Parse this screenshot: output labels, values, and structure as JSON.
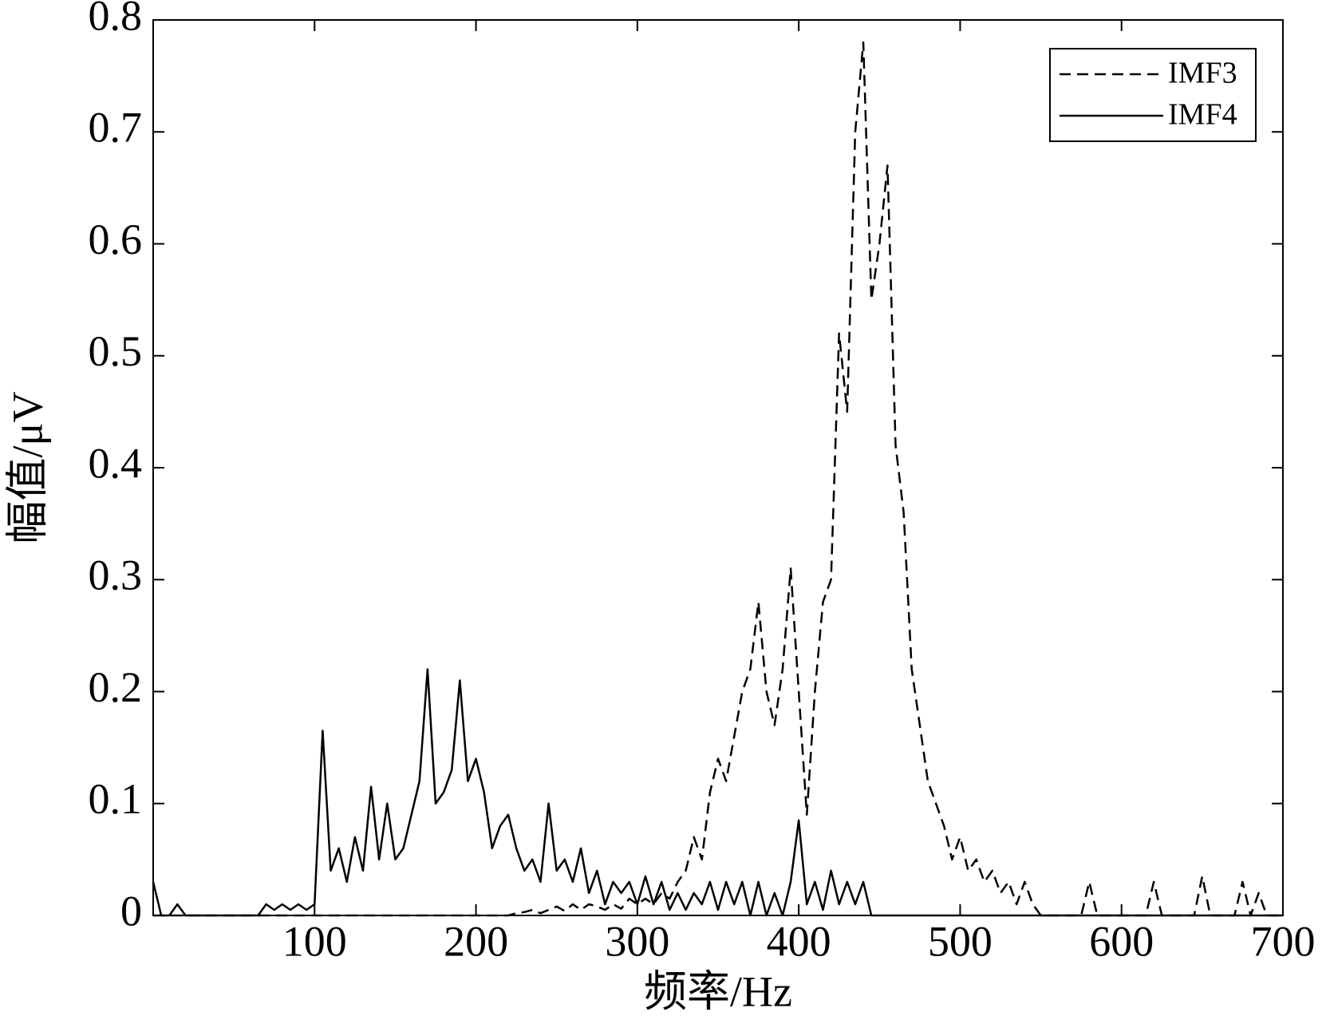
{
  "chart_data": {
    "type": "line",
    "x_label": "频率/Hz",
    "y_label": "幅值/μV",
    "xlim": [
      0,
      700
    ],
    "xticks": [
      100,
      200,
      300,
      400,
      500,
      600,
      700
    ],
    "ylim": [
      0,
      0.8
    ],
    "yticks": [
      0,
      0.1,
      0.2,
      0.3,
      0.4,
      0.5,
      0.6,
      0.7,
      0.8
    ],
    "grid": false,
    "legend_position": "upper right",
    "x": [
      0,
      5,
      10,
      15,
      20,
      25,
      30,
      35,
      40,
      45,
      50,
      55,
      60,
      65,
      70,
      75,
      80,
      85,
      90,
      95,
      100,
      105,
      110,
      115,
      120,
      125,
      130,
      135,
      140,
      145,
      150,
      155,
      160,
      165,
      170,
      175,
      180,
      185,
      190,
      195,
      200,
      205,
      210,
      215,
      220,
      225,
      230,
      235,
      240,
      245,
      250,
      255,
      260,
      265,
      270,
      275,
      280,
      285,
      290,
      295,
      300,
      305,
      310,
      315,
      320,
      325,
      330,
      335,
      340,
      345,
      350,
      355,
      360,
      365,
      370,
      375,
      380,
      385,
      390,
      395,
      400,
      405,
      410,
      415,
      420,
      425,
      430,
      435,
      440,
      445,
      450,
      455,
      460,
      465,
      470,
      475,
      480,
      485,
      490,
      495,
      500,
      505,
      510,
      515,
      520,
      525,
      530,
      535,
      540,
      545,
      550,
      555,
      560,
      565,
      570,
      575,
      580,
      585,
      590,
      595,
      600,
      605,
      610,
      615,
      620,
      625,
      630,
      635,
      640,
      645,
      650,
      655,
      660,
      665,
      670,
      675,
      680,
      685,
      690,
      695,
      700
    ],
    "series": [
      {
        "name": "IMF3",
        "color": "#000000",
        "dash": true,
        "values": [
          0,
          0,
          0,
          0,
          0,
          0,
          0,
          0,
          0,
          0,
          0,
          0,
          0,
          0,
          0,
          0,
          0,
          0,
          0,
          0,
          0,
          0,
          0,
          0,
          0,
          0,
          0,
          0,
          0,
          0,
          0,
          0,
          0,
          0,
          0,
          0,
          0,
          0,
          0,
          0,
          0,
          0,
          0,
          0,
          0,
          0.002,
          0.003,
          0.005,
          0.002,
          0.005,
          0.008,
          0.004,
          0.01,
          0.005,
          0.01,
          0.008,
          0.005,
          0.01,
          0.006,
          0.015,
          0.01,
          0.015,
          0.01,
          0.02,
          0.015,
          0.03,
          0.04,
          0.07,
          0.05,
          0.11,
          0.14,
          0.12,
          0.16,
          0.2,
          0.22,
          0.28,
          0.2,
          0.17,
          0.22,
          0.31,
          0.2,
          0.09,
          0.2,
          0.28,
          0.3,
          0.52,
          0.45,
          0.7,
          0.78,
          0.55,
          0.6,
          0.67,
          0.42,
          0.36,
          0.22,
          0.17,
          0.12,
          0.1,
          0.08,
          0.05,
          0.07,
          0.04,
          0.05,
          0.03,
          0.04,
          0.02,
          0.03,
          0.01,
          0.03,
          0.01,
          0,
          0,
          0,
          0,
          0,
          0,
          0.03,
          0,
          0,
          0,
          0,
          0,
          0,
          0,
          0.03,
          0,
          0,
          0,
          0,
          0,
          0.035,
          0,
          0,
          0,
          0,
          0.03,
          0,
          0.02,
          0,
          0,
          0
        ]
      },
      {
        "name": "IMF4",
        "color": "#000000",
        "dash": false,
        "values": [
          0.03,
          0,
          0,
          0.01,
          0,
          0,
          0,
          0,
          0,
          0,
          0,
          0,
          0,
          0,
          0.01,
          0.005,
          0.01,
          0.005,
          0.01,
          0.005,
          0.01,
          0.165,
          0.04,
          0.06,
          0.03,
          0.07,
          0.04,
          0.115,
          0.05,
          0.1,
          0.05,
          0.06,
          0.09,
          0.12,
          0.22,
          0.1,
          0.11,
          0.13,
          0.21,
          0.12,
          0.14,
          0.11,
          0.06,
          0.08,
          0.09,
          0.06,
          0.04,
          0.05,
          0.03,
          0.1,
          0.04,
          0.05,
          0.03,
          0.06,
          0.02,
          0.04,
          0.01,
          0.03,
          0.02,
          0.03,
          0.01,
          0.035,
          0.01,
          0.03,
          0.005,
          0.02,
          0.005,
          0.02,
          0.01,
          0.03,
          0.005,
          0.03,
          0.01,
          0.03,
          0,
          0.03,
          0,
          0.02,
          0,
          0.03,
          0.085,
          0.01,
          0.03,
          0.005,
          0.04,
          0.01,
          0.03,
          0.01,
          0.03,
          0,
          0,
          0,
          0,
          0,
          0,
          0,
          0,
          0,
          0,
          0,
          0,
          0,
          0,
          0,
          0,
          0,
          0,
          0,
          0,
          0,
          0,
          0,
          0,
          0,
          0,
          0,
          0,
          0,
          0,
          0,
          0,
          0,
          0,
          0,
          0,
          0,
          0,
          0,
          0,
          0,
          0,
          0,
          0,
          0,
          0,
          0,
          0,
          0,
          0,
          0,
          0
        ]
      }
    ]
  }
}
